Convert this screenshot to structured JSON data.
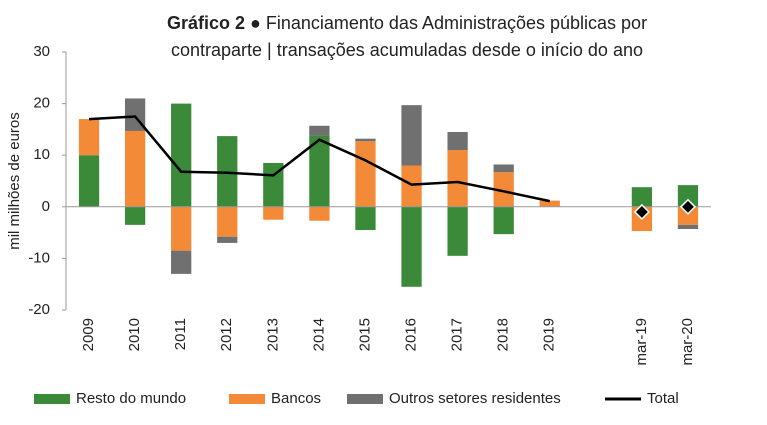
{
  "chart_data": {
    "type": "bar",
    "title_label": "Gráfico 2",
    "title": [
      "● Financiamento das Administrações públicas por",
      "contraparte | transações acumuladas desde o início do ano"
    ],
    "y_label": "mil milhões de euros",
    "categories": [
      "2009",
      "2010",
      "2011",
      "2012",
      "2013",
      "2014",
      "2015",
      "2016",
      "2017",
      "2018",
      "2019",
      null,
      "mar-19",
      "mar-20"
    ],
    "series": [
      {
        "name": "Resto do mundo",
        "color": "#3a8a3a",
        "values": [
          10,
          -3.5,
          20,
          13.7,
          8.5,
          13.8,
          -4.5,
          -15.5,
          -9.5,
          -5.3,
          0,
          null,
          3.8,
          4.2
        ]
      },
      {
        "name": "Bancos",
        "color": "#f28a38",
        "values": [
          7,
          14.7,
          -8.5,
          -5.8,
          -2.5,
          -2.7,
          12.7,
          8,
          11,
          6.7,
          1.2,
          null,
          -4.7,
          -3.5
        ]
      },
      {
        "name": "Outros setores residentes",
        "color": "#707070",
        "values": [
          0,
          6.3,
          -4.5,
          -1.2,
          0,
          1.9,
          0.5,
          11.7,
          3.5,
          1.5,
          0,
          null,
          0,
          -0.8
        ]
      },
      {
        "name": "Total",
        "color": "#000000",
        "kind": "line",
        "values": [
          17,
          17.5,
          6.8,
          6.6,
          6.1,
          13,
          9,
          4.3,
          4.8,
          3,
          1.1,
          null,
          null,
          null
        ]
      },
      {
        "color": "#000000",
        "kind": "marker",
        "values": [
          null,
          null,
          null,
          null,
          null,
          null,
          null,
          null,
          null,
          null,
          null,
          null,
          -1,
          0
        ]
      }
    ],
    "ylim": [
      -20,
      30
    ],
    "yticks": [
      -20,
      -10,
      0,
      10,
      20,
      30
    ]
  }
}
